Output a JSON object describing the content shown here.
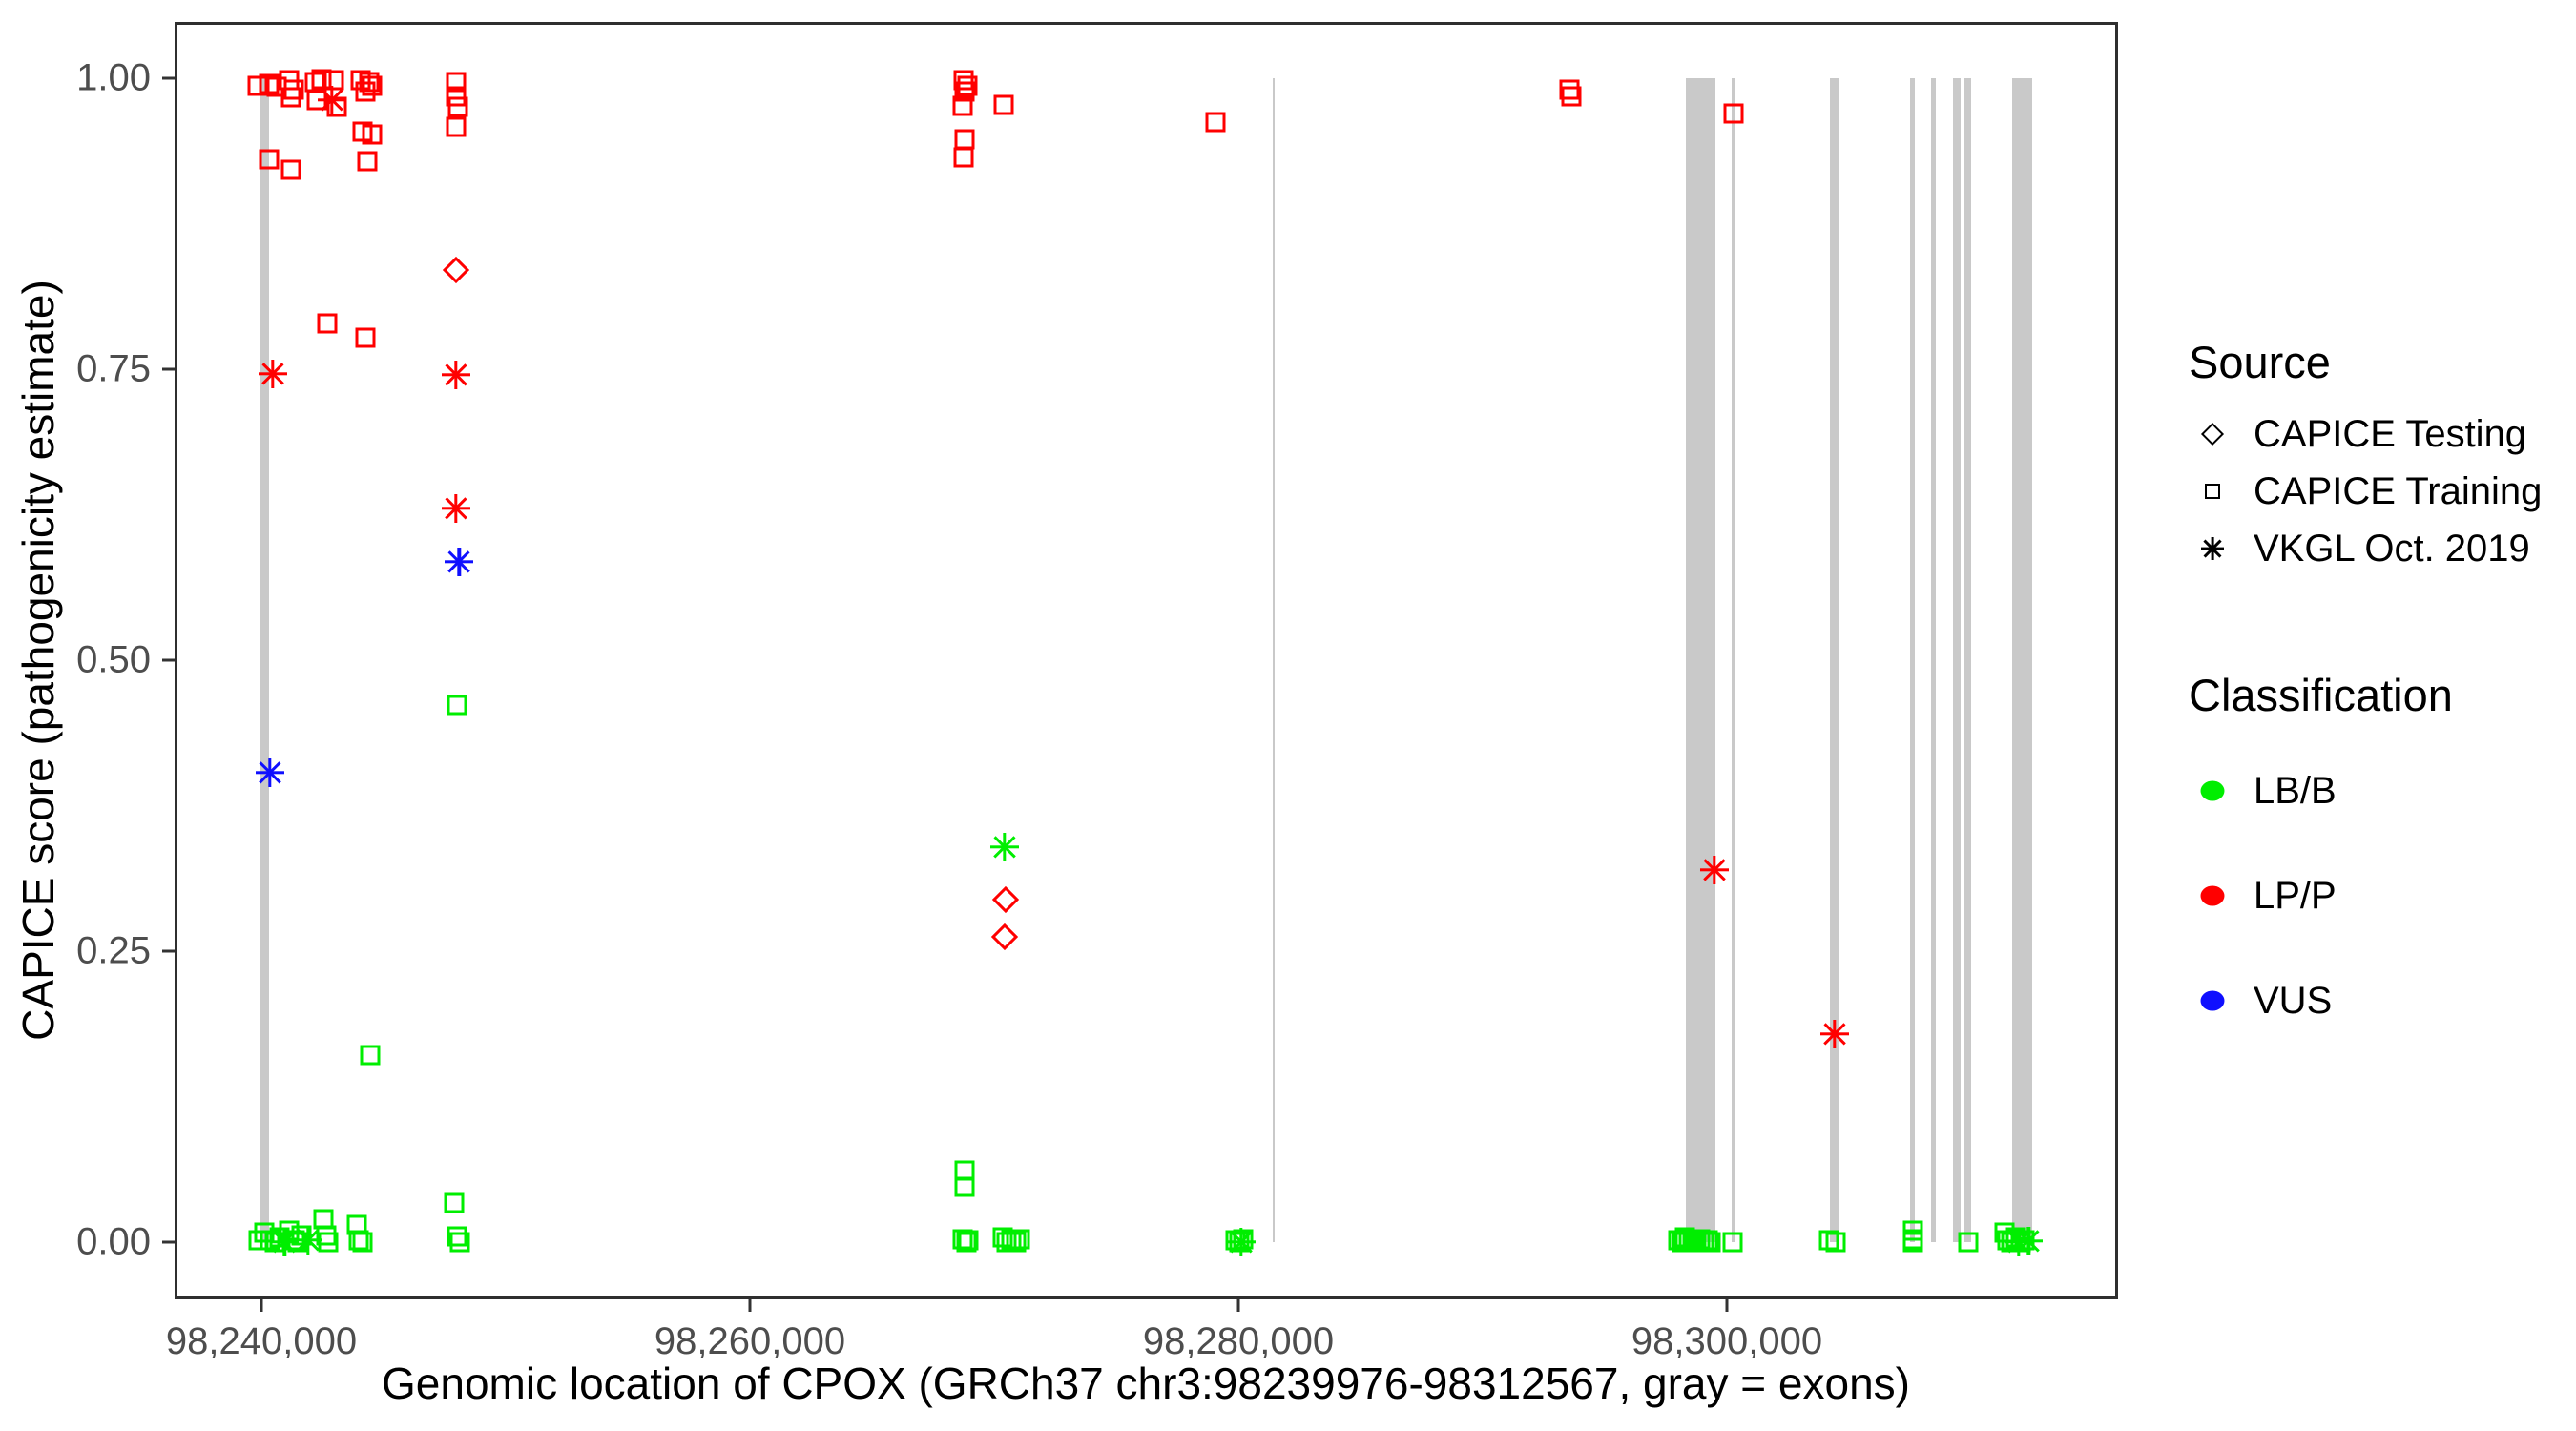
{
  "colors": {
    "LB/B": "#00ee00",
    "LP/P": "#ff0000",
    "VUS": "#0f0fff",
    "exon_gray": "#c9c9c9",
    "tick_text": "#4d4d4d",
    "panel_border": "#2f2f2f"
  },
  "axes": {
    "x": {
      "title": "Genomic location of CPOX (GRCh37 chr3:98239976-98312567, gray = exons)",
      "ticks": [
        {
          "value": 98240000,
          "label": "98,240,000"
        },
        {
          "value": 98260000,
          "label": "98,260,000"
        },
        {
          "value": 98280000,
          "label": "98,280,000"
        },
        {
          "value": 98300000,
          "label": "98,300,000"
        }
      ]
    },
    "y": {
      "title": "CAPICE score (pathogenicity estimate)",
      "ticks": [
        {
          "value": 0.0,
          "label": "0.00"
        },
        {
          "value": 0.25,
          "label": "0.25"
        },
        {
          "value": 0.5,
          "label": "0.50"
        },
        {
          "value": 0.75,
          "label": "0.75"
        },
        {
          "value": 1.0,
          "label": "1.00"
        }
      ]
    }
  },
  "legend": {
    "source": {
      "title": "Source",
      "items": [
        {
          "label": "CAPICE Testing",
          "glyph": "diamond-icon"
        },
        {
          "label": "CAPICE Training",
          "glyph": "square-icon"
        },
        {
          "label": "VKGL Oct. 2019",
          "glyph": "asterisk-icon"
        }
      ]
    },
    "classification": {
      "title": "Classification",
      "items": [
        {
          "label": "LB/B",
          "color": "#00ee00"
        },
        {
          "label": "LP/P",
          "color": "#ff0000"
        },
        {
          "label": "VUS",
          "color": "#0f0fff"
        }
      ]
    }
  },
  "chart_data": {
    "type": "scatter",
    "xlabel": "Genomic location of CPOX (GRCh37 chr3:98239976-98312567, gray = exons)",
    "ylabel": "CAPICE score (pathogenicity estimate)",
    "xlim": [
      98236445,
      98316016
    ],
    "ylim": [
      -0.049,
      1.048
    ],
    "grid": false,
    "legend_position": "right",
    "marker_by_source": {
      "testing": "open-diamond",
      "training": "open-square",
      "vkgl": "asterisk"
    },
    "exons_bp": [
      [
        98239976,
        98240330
      ],
      [
        98281410,
        98281500
      ],
      [
        98298320,
        98299530
      ],
      [
        98300195,
        98300310
      ],
      [
        98304220,
        98304610
      ],
      [
        98307500,
        98307700
      ],
      [
        98308360,
        98308560
      ],
      [
        98309260,
        98309570
      ],
      [
        98309730,
        98310000
      ],
      [
        98311680,
        98312500
      ]
    ],
    "points_format": [
      "bp",
      "score",
      "source",
      "classification"
    ],
    "points": [
      [
        98239840,
        0.993,
        "training",
        "LP/P"
      ],
      [
        98240310,
        0.995,
        "training",
        "LP/P"
      ],
      [
        98240630,
        0.992,
        "training",
        "LP/P"
      ],
      [
        98241130,
        0.998,
        "training",
        "LP/P"
      ],
      [
        98241210,
        0.983,
        "training",
        "LP/P"
      ],
      [
        98241330,
        0.99,
        "training",
        "LP/P"
      ],
      [
        98242190,
        0.996,
        "training",
        "LP/P"
      ],
      [
        98242270,
        0.981,
        "training",
        "LP/P"
      ],
      [
        98242460,
        0.999,
        "training",
        "LP/P"
      ],
      [
        98242970,
        0.998,
        "training",
        "LP/P"
      ],
      [
        98243090,
        0.975,
        "training",
        "LP/P"
      ],
      [
        98244060,
        0.998,
        "training",
        "LP/P"
      ],
      [
        98244260,
        0.988,
        "training",
        "LP/P"
      ],
      [
        98244410,
        0.996,
        "training",
        "LP/P"
      ],
      [
        98244530,
        0.993,
        "training",
        "LP/P"
      ],
      [
        98240310,
        0.93,
        "training",
        "LP/P"
      ],
      [
        98241210,
        0.921,
        "training",
        "LP/P"
      ],
      [
        98244140,
        0.954,
        "training",
        "LP/P"
      ],
      [
        98244530,
        0.951,
        "training",
        "LP/P"
      ],
      [
        98244340,
        0.928,
        "training",
        "LP/P"
      ],
      [
        98247970,
        0.996,
        "training",
        "LP/P"
      ],
      [
        98247970,
        0.984,
        "training",
        "LP/P"
      ],
      [
        98248050,
        0.975,
        "training",
        "LP/P"
      ],
      [
        98247970,
        0.958,
        "training",
        "LP/P"
      ],
      [
        98242700,
        0.789,
        "training",
        "LP/P"
      ],
      [
        98244260,
        0.777,
        "training",
        "LP/P"
      ],
      [
        98268750,
        0.998,
        "training",
        "LP/P"
      ],
      [
        98268900,
        0.993,
        "training",
        "LP/P"
      ],
      [
        98268800,
        0.988,
        "training",
        "LP/P"
      ],
      [
        98268710,
        0.976,
        "training",
        "LP/P"
      ],
      [
        98270390,
        0.977,
        "training",
        "LP/P"
      ],
      [
        98268790,
        0.947,
        "training",
        "LP/P"
      ],
      [
        98268750,
        0.932,
        "training",
        "LP/P"
      ],
      [
        98279060,
        0.962,
        "training",
        "LP/P"
      ],
      [
        98293550,
        0.99,
        "training",
        "LP/P"
      ],
      [
        98293650,
        0.984,
        "training",
        "LP/P"
      ],
      [
        98300270,
        0.969,
        "training",
        "LP/P"
      ],
      [
        98242890,
        0.981,
        "vkgl",
        "LP/P"
      ],
      [
        98240470,
        0.746,
        "vkgl",
        "LP/P"
      ],
      [
        98247970,
        0.745,
        "vkgl",
        "LP/P"
      ],
      [
        98247970,
        0.63,
        "vkgl",
        "LP/P"
      ],
      [
        98299490,
        0.32,
        "vkgl",
        "LP/P"
      ],
      [
        98304410,
        0.179,
        "vkgl",
        "LP/P"
      ],
      [
        98247970,
        0.835,
        "testing",
        "LP/P"
      ],
      [
        98270470,
        0.294,
        "testing",
        "LP/P"
      ],
      [
        98270430,
        0.262,
        "testing",
        "LP/P"
      ],
      [
        98248090,
        0.584,
        "vkgl",
        "VUS"
      ],
      [
        98240350,
        0.403,
        "vkgl",
        "VUS"
      ],
      [
        98248010,
        0.461,
        "training",
        "LB/B"
      ],
      [
        98244450,
        0.161,
        "training",
        "LB/B"
      ],
      [
        98268800,
        0.062,
        "training",
        "LB/B"
      ],
      [
        98268800,
        0.048,
        "training",
        "LB/B"
      ],
      [
        98247900,
        0.034,
        "training",
        "LB/B"
      ],
      [
        98242550,
        0.02,
        "training",
        "LB/B"
      ],
      [
        98243900,
        0.015,
        "training",
        "LB/B"
      ],
      [
        98241150,
        0.01,
        "training",
        "LB/B"
      ],
      [
        98240100,
        0.008,
        "training",
        "LB/B"
      ],
      [
        98241650,
        0.006,
        "training",
        "LB/B"
      ],
      [
        98242650,
        0.006,
        "training",
        "LB/B"
      ],
      [
        98248000,
        0.005,
        "training",
        "LB/B"
      ],
      [
        98240750,
        0.004,
        "training",
        "LB/B"
      ],
      [
        98239900,
        0.002,
        "training",
        "LB/B"
      ],
      [
        98240350,
        0.002,
        "training",
        "LB/B"
      ],
      [
        98241350,
        0.002,
        "training",
        "LB/B"
      ],
      [
        98244000,
        0.002,
        "training",
        "LB/B"
      ],
      [
        98240550,
        0.0,
        "training",
        "LB/B"
      ],
      [
        98241500,
        0.0,
        "training",
        "LB/B"
      ],
      [
        98242750,
        0.0,
        "training",
        "LB/B"
      ],
      [
        98244150,
        0.0,
        "training",
        "LB/B"
      ],
      [
        98248120,
        0.0,
        "training",
        "LB/B"
      ],
      [
        98268700,
        0.003,
        "training",
        "LB/B"
      ],
      [
        98268850,
        0.0,
        "training",
        "LB/B"
      ],
      [
        98268950,
        0.002,
        "training",
        "LB/B"
      ],
      [
        98270350,
        0.004,
        "training",
        "LB/B"
      ],
      [
        98270500,
        0.0,
        "training",
        "LB/B"
      ],
      [
        98270700,
        0.002,
        "training",
        "LB/B"
      ],
      [
        98270900,
        0.0,
        "training",
        "LB/B"
      ],
      [
        98271050,
        0.003,
        "training",
        "LB/B"
      ],
      [
        98279900,
        0.002,
        "training",
        "LB/B"
      ],
      [
        98280050,
        0.0,
        "training",
        "LB/B"
      ],
      [
        98280200,
        0.003,
        "training",
        "LB/B"
      ],
      [
        98298000,
        0.002,
        "training",
        "LB/B"
      ],
      [
        98298150,
        0.0,
        "training",
        "LB/B"
      ],
      [
        98298300,
        0.004,
        "training",
        "LB/B"
      ],
      [
        98298450,
        0.0,
        "training",
        "LB/B"
      ],
      [
        98298600,
        0.002,
        "training",
        "LB/B"
      ],
      [
        98298750,
        0.0,
        "training",
        "LB/B"
      ],
      [
        98298900,
        0.003,
        "training",
        "LB/B"
      ],
      [
        98299050,
        0.0,
        "training",
        "LB/B"
      ],
      [
        98299200,
        0.002,
        "training",
        "LB/B"
      ],
      [
        98299350,
        0.0,
        "training",
        "LB/B"
      ],
      [
        98300230,
        0.0,
        "training",
        "LB/B"
      ],
      [
        98304180,
        0.002,
        "training",
        "LB/B"
      ],
      [
        98304450,
        0.0,
        "training",
        "LB/B"
      ],
      [
        98307600,
        0.01,
        "training",
        "LB/B"
      ],
      [
        98307600,
        0.003,
        "training",
        "LB/B"
      ],
      [
        98307600,
        0.0,
        "training",
        "LB/B"
      ],
      [
        98309900,
        0.0,
        "training",
        "LB/B"
      ],
      [
        98311350,
        0.008,
        "training",
        "LB/B"
      ],
      [
        98311500,
        0.002,
        "training",
        "LB/B"
      ],
      [
        98311650,
        0.0,
        "training",
        "LB/B"
      ],
      [
        98311850,
        0.004,
        "training",
        "LB/B"
      ],
      [
        98312050,
        0.0,
        "training",
        "LB/B"
      ],
      [
        98312200,
        0.002,
        "training",
        "LB/B"
      ],
      [
        98240950,
        0.0,
        "vkgl",
        "LB/B"
      ],
      [
        98241900,
        0.002,
        "vkgl",
        "LB/B"
      ],
      [
        98270430,
        0.339,
        "vkgl",
        "LB/B"
      ],
      [
        98280100,
        0.0,
        "vkgl",
        "LB/B"
      ],
      [
        98311950,
        0.0,
        "vkgl",
        "LB/B"
      ],
      [
        98312350,
        0.001,
        "vkgl",
        "LB/B"
      ]
    ]
  }
}
